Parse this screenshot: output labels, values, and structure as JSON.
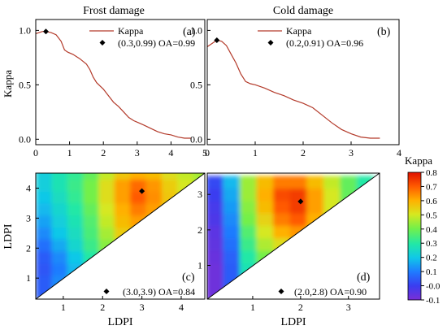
{
  "colors": {
    "kappa_line": "#b33a2a",
    "colormap": [
      "#7b2fd6",
      "#3a3df0",
      "#1f7bff",
      "#10c8e8",
      "#22e8a6",
      "#73f04a",
      "#d6e820",
      "#ffb000",
      "#ff5a00",
      "#e01000"
    ]
  },
  "chart_data": [
    {
      "type": "line",
      "panel_label": "(a)",
      "title": "Frost damage",
      "ylabel": "Kappa",
      "xlim": [
        0,
        5
      ],
      "ylim": [
        -0.05,
        1.1
      ],
      "xticks": [
        "0",
        "1",
        "2",
        "3",
        "4",
        "5"
      ],
      "yticks": [
        "0.0",
        "0.5",
        "1.0"
      ],
      "legend": {
        "line_label": "Kappa",
        "marker_label": "(0.3,0.99) OA=0.99"
      },
      "best_point": {
        "x": 0.3,
        "y": 0.99
      },
      "series": [
        {
          "name": "Kappa",
          "x": [
            0,
            0.1,
            0.2,
            0.3,
            0.45,
            0.6,
            0.75,
            0.85,
            0.95,
            1.1,
            1.3,
            1.5,
            1.6,
            1.7,
            1.8,
            1.9,
            2.0,
            2.1,
            2.2,
            2.3,
            2.45,
            2.6,
            2.75,
            2.9,
            3.05,
            3.2,
            3.4,
            3.6,
            3.8,
            4.0,
            4.2,
            4.4,
            4.6
          ],
          "y": [
            0.97,
            0.98,
            0.99,
            0.99,
            0.98,
            0.96,
            0.9,
            0.82,
            0.8,
            0.78,
            0.74,
            0.69,
            0.64,
            0.57,
            0.52,
            0.49,
            0.46,
            0.42,
            0.38,
            0.34,
            0.3,
            0.25,
            0.2,
            0.17,
            0.15,
            0.13,
            0.1,
            0.07,
            0.05,
            0.04,
            0.02,
            0.01,
            0.01
          ]
        }
      ]
    },
    {
      "type": "line",
      "panel_label": "(b)",
      "title": "Cold damage",
      "xlim": [
        0,
        4
      ],
      "ylim": [
        -0.05,
        1.1
      ],
      "xticks": [
        "0",
        "1",
        "2",
        "3",
        "4"
      ],
      "yticks": [
        "0.0",
        "0.5",
        "1.0"
      ],
      "legend": {
        "line_label": "Kappa",
        "marker_label": "(0.2,0.91) OA=0.96"
      },
      "best_point": {
        "x": 0.2,
        "y": 0.91
      },
      "series": [
        {
          "name": "Kappa",
          "x": [
            0,
            0.1,
            0.2,
            0.3,
            0.4,
            0.5,
            0.6,
            0.7,
            0.8,
            0.9,
            1.0,
            1.2,
            1.4,
            1.6,
            1.8,
            2.0,
            2.2,
            2.4,
            2.6,
            2.8,
            3.0,
            3.2,
            3.4,
            3.6
          ],
          "y": [
            0.85,
            0.88,
            0.91,
            0.9,
            0.86,
            0.78,
            0.7,
            0.6,
            0.53,
            0.51,
            0.5,
            0.47,
            0.43,
            0.4,
            0.36,
            0.33,
            0.29,
            0.22,
            0.15,
            0.09,
            0.05,
            0.02,
            0.01,
            0.01
          ]
        }
      ]
    },
    {
      "type": "heatmap",
      "panel_label": "(c)",
      "xlabel": "LDPI",
      "ylabel": "LDPI",
      "xlim": [
        0.3,
        4.6
      ],
      "ylim": [
        0.3,
        4.5
      ],
      "xticks": [
        "1",
        "2",
        "3",
        "4"
      ],
      "yticks": [
        "1",
        "2",
        "3",
        "4"
      ],
      "legend": {
        "marker_label": "(3.0,3.9) OA=0.84"
      },
      "best_point": {
        "x": 3.0,
        "y": 3.9
      },
      "grid_x": [
        0.5,
        0.9,
        1.3,
        1.7,
        2.1,
        2.5,
        2.9,
        3.3,
        3.7,
        4.1,
        4.5
      ],
      "grid_y": [
        0.5,
        0.9,
        1.3,
        1.7,
        2.1,
        2.5,
        2.9,
        3.3,
        3.7,
        4.1,
        4.5
      ],
      "values": [
        [
          0.05,
          0.15,
          0.22,
          0.3,
          0.32,
          0.34,
          0.35,
          0.35,
          0.35,
          0.34,
          0.33
        ],
        [
          0.05,
          0.12,
          0.2,
          0.28,
          0.32,
          0.36,
          0.38,
          0.38,
          0.37,
          0.35,
          0.33
        ],
        [
          0.04,
          0.1,
          0.18,
          0.27,
          0.34,
          0.4,
          0.42,
          0.42,
          0.4,
          0.37,
          0.34
        ],
        [
          0.05,
          0.12,
          0.2,
          0.3,
          0.38,
          0.45,
          0.48,
          0.47,
          0.44,
          0.4,
          0.36
        ],
        [
          0.08,
          0.16,
          0.24,
          0.33,
          0.42,
          0.5,
          0.52,
          0.5,
          0.47,
          0.42,
          0.38
        ],
        [
          0.12,
          0.2,
          0.26,
          0.35,
          0.45,
          0.55,
          0.56,
          0.54,
          0.5,
          0.44,
          0.4
        ],
        [
          0.15,
          0.22,
          0.28,
          0.36,
          0.48,
          0.58,
          0.62,
          0.58,
          0.52,
          0.46,
          0.42
        ],
        [
          0.18,
          0.24,
          0.3,
          0.38,
          0.5,
          0.6,
          0.66,
          0.62,
          0.55,
          0.48,
          0.44
        ],
        [
          0.2,
          0.26,
          0.32,
          0.4,
          0.52,
          0.62,
          0.7,
          0.64,
          0.56,
          0.5,
          0.45
        ],
        [
          0.22,
          0.28,
          0.33,
          0.4,
          0.52,
          0.62,
          0.68,
          0.63,
          0.55,
          0.5,
          0.46
        ],
        [
          0.22,
          0.28,
          0.32,
          0.38,
          0.48,
          0.56,
          0.6,
          0.58,
          0.52,
          0.48,
          0.45
        ]
      ]
    },
    {
      "type": "heatmap",
      "panel_label": "(d)",
      "xlabel": "LDPI",
      "xlim": [
        0.05,
        3.65
      ],
      "ylim": [
        0.05,
        3.6
      ],
      "xticks": [
        "1",
        "2",
        "3"
      ],
      "yticks": [
        "1",
        "2",
        "3"
      ],
      "legend": {
        "marker_label": "(2.0,2.8) OA=0.90"
      },
      "best_point": {
        "x": 2.0,
        "y": 2.8
      },
      "colorbar": {
        "label": "Kappa",
        "min": -0.1,
        "max": 0.8,
        "ticks": [
          "-0.1",
          "-0.0",
          "0.1",
          "0.2",
          "0.3",
          "0.4",
          "0.5",
          "0.6",
          "0.7",
          "0.8"
        ]
      },
      "grid_x": [
        0.2,
        0.55,
        0.9,
        1.25,
        1.6,
        1.95,
        2.3,
        2.65,
        3.0,
        3.35
      ],
      "grid_y": [
        0.2,
        0.55,
        0.9,
        1.25,
        1.6,
        1.95,
        2.3,
        2.65,
        3.0,
        3.35
      ],
      "values": [
        [
          -0.08,
          0.05,
          0.22,
          0.28,
          0.3,
          0.3,
          0.3,
          0.28,
          0.26,
          0.24
        ],
        [
          -0.08,
          0.05,
          0.25,
          0.32,
          0.35,
          0.36,
          0.35,
          0.32,
          0.28,
          0.25
        ],
        [
          -0.08,
          0.05,
          0.28,
          0.36,
          0.4,
          0.42,
          0.4,
          0.36,
          0.3,
          0.26
        ],
        [
          -0.07,
          0.06,
          0.3,
          0.4,
          0.45,
          0.48,
          0.45,
          0.4,
          0.32,
          0.27
        ],
        [
          -0.06,
          0.08,
          0.33,
          0.46,
          0.52,
          0.55,
          0.5,
          0.42,
          0.34,
          0.28
        ],
        [
          -0.05,
          0.1,
          0.36,
          0.5,
          0.6,
          0.63,
          0.56,
          0.46,
          0.36,
          0.29
        ],
        [
          -0.03,
          0.12,
          0.4,
          0.54,
          0.66,
          0.7,
          0.6,
          0.48,
          0.37,
          0.3
        ],
        [
          -0.02,
          0.14,
          0.42,
          0.58,
          0.7,
          0.74,
          0.62,
          0.5,
          0.38,
          0.3
        ],
        [
          0.0,
          0.16,
          0.44,
          0.6,
          0.72,
          0.74,
          0.62,
          0.5,
          0.38,
          0.3
        ],
        [
          0.02,
          0.18,
          0.44,
          0.58,
          0.66,
          0.66,
          0.58,
          0.48,
          0.38,
          0.3
        ]
      ]
    }
  ]
}
